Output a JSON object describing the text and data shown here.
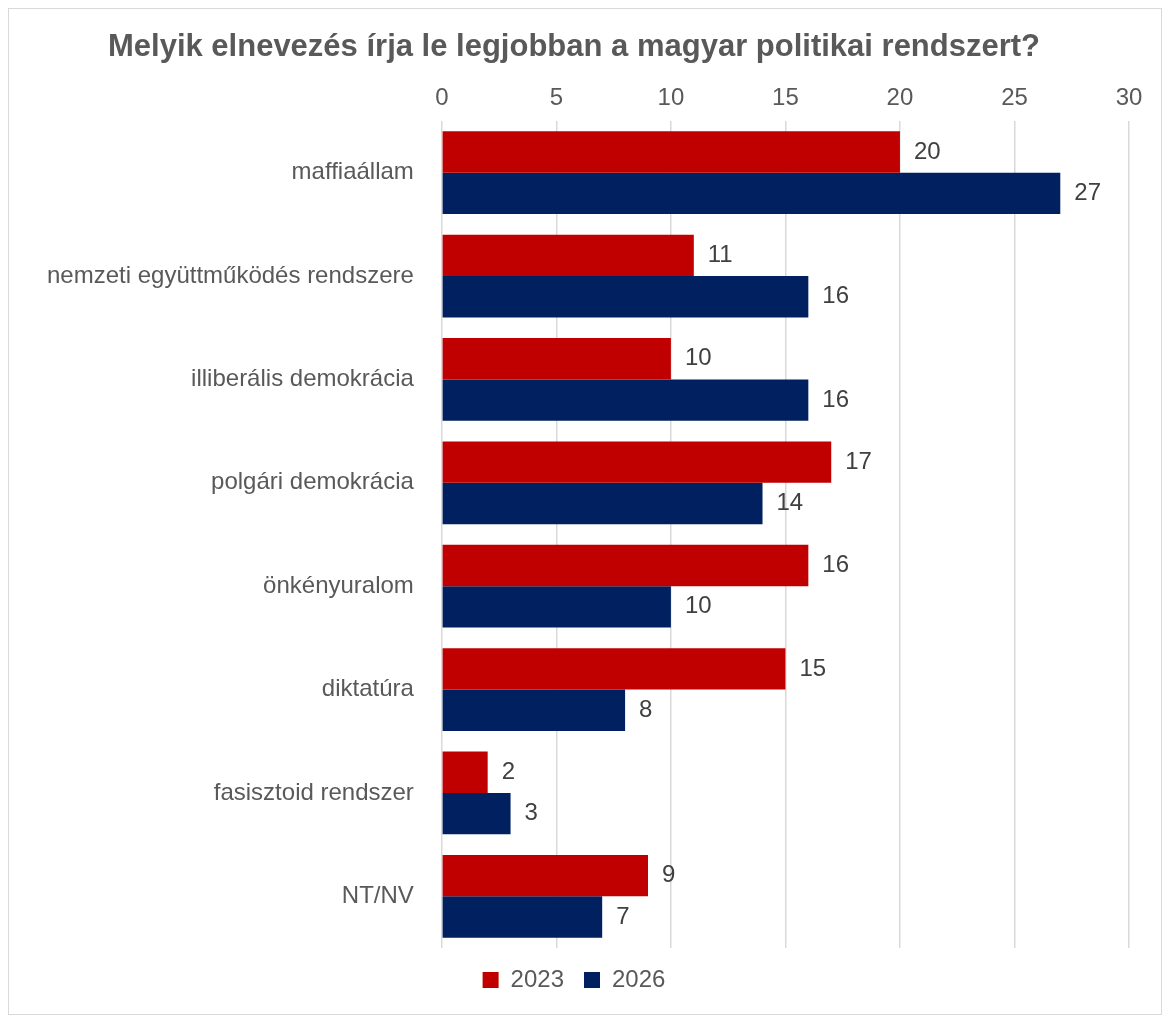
{
  "chart_data": {
    "type": "bar",
    "orientation": "horizontal",
    "title": "Melyik elnevezés írja le legjobban a magyar politikai rendszert?",
    "categories": [
      "maffiaállam",
      "nemzeti együttműködés rendszere",
      "illiberális demokrácia",
      "polgári demokrácia",
      "önkényuralom",
      "diktatúra",
      "fasisztoid rendszer",
      "NT/NV"
    ],
    "series": [
      {
        "name": "2023",
        "color": "#c00000",
        "values": [
          20,
          11,
          10,
          17,
          16,
          15,
          2,
          9
        ]
      },
      {
        "name": "2026",
        "color": "#002060",
        "values": [
          27,
          16,
          16,
          14,
          10,
          8,
          3,
          7
        ]
      }
    ],
    "xlim": [
      0,
      30
    ],
    "xticks": [
      0,
      5,
      10,
      15,
      20,
      25,
      30
    ],
    "grid": "x",
    "legend": "bottom",
    "data_labels": true
  }
}
